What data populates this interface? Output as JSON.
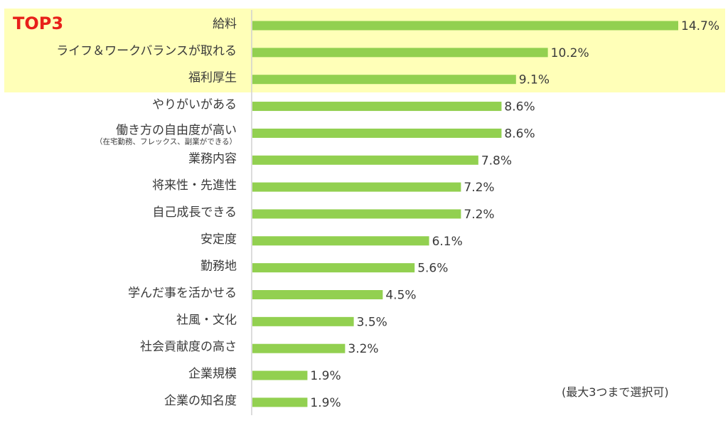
{
  "chart_data": {
    "type": "bar",
    "orientation": "horizontal",
    "categories": [
      "給料",
      "ライフ＆ワークバランスが取れる",
      "福利厚生",
      "やりがいがある",
      "働き方の自由度が高い",
      "業務内容",
      "将来性・先進性",
      "自己成長できる",
      "安定度",
      "勤務地",
      "学んだ事を活かせる",
      "社風・文化",
      "社会貢献度の高さ",
      "企業規模",
      "企業の知名度"
    ],
    "category_sublabels": {
      "4": "（在宅勤務、フレックス、副業ができる）"
    },
    "values": [
      14.7,
      10.2,
      9.1,
      8.6,
      8.6,
      7.8,
      7.2,
      7.2,
      6.1,
      5.6,
      4.5,
      3.5,
      3.2,
      1.9,
      1.9
    ],
    "value_labels": [
      "14.7%",
      "10.2%",
      "9.1%",
      "8.6%",
      "8.6%",
      "7.8%",
      "7.2%",
      "7.2%",
      "6.1%",
      "5.6%",
      "4.5%",
      "3.5%",
      "3.2%",
      "1.9%",
      "1.9%"
    ],
    "unit": "%",
    "xlim": [
      0,
      14.7
    ],
    "highlight": {
      "label": "TOP3",
      "count": 3,
      "color": "#ffffb8",
      "label_color": "#e8201a"
    },
    "bar_color": "#92d050",
    "grid": false,
    "note": "(最大3つまで選択可)"
  }
}
